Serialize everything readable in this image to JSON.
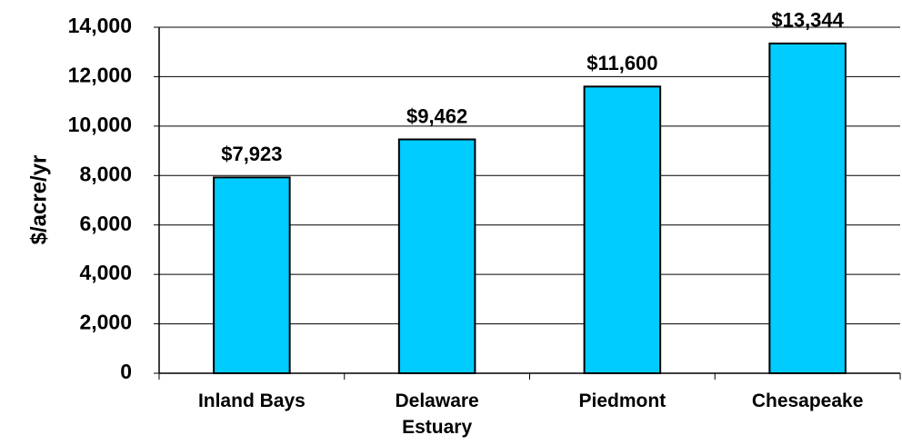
{
  "chart_data": {
    "type": "bar",
    "y_label": "$/acre/yr",
    "categories": [
      "Inland Bays",
      "Delaware Estuary",
      "Piedmont",
      "Chesapeake"
    ],
    "values": [
      7923,
      9462,
      11600,
      13344
    ],
    "value_labels": [
      "$7,923",
      "$9,462",
      "$11,600",
      "$13,344"
    ],
    "color": "#00ccff",
    "ylim": [
      0,
      14000
    ],
    "yticks": [
      0,
      {
        "value": 2000,
        "label": "2,000"
      },
      {
        "value": 4000,
        "label": "4,000"
      },
      {
        "value": 6000,
        "label": "6,000"
      },
      {
        "value": 8000,
        "label": "8,000"
      },
      {
        "value": 10000,
        "label": "10,000"
      },
      {
        "value": 12000,
        "label": "12,000"
      },
      {
        "value": 14000,
        "label": "14,000"
      }
    ],
    "grid": true
  }
}
